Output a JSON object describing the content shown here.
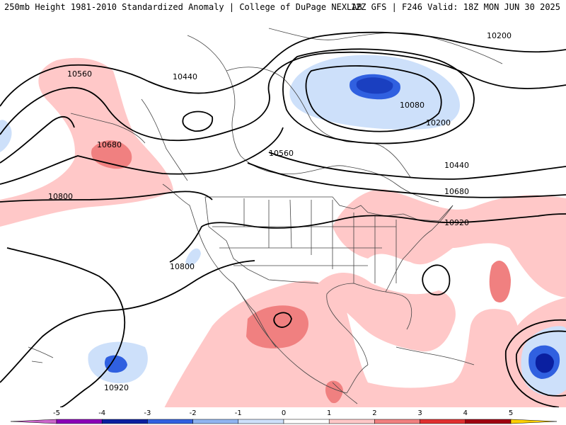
{
  "header": {
    "title": "250mb Height 1981-2010 Standardized Anomaly | College of DuPage NEXLAB",
    "run_info": "12Z GFS | F246 Valid: 18Z MON JUN 30 2025"
  },
  "contour_labels": [
    "10560",
    "10440",
    "10200",
    "10080",
    "10200",
    "10680",
    "10560",
    "10440",
    "10680",
    "10800",
    "10920",
    "10800",
    "10920"
  ],
  "legend": {
    "ticks": [
      "-5",
      "-4",
      "-3",
      "-2",
      "-1",
      "0",
      "1",
      "2",
      "3",
      "4",
      "5"
    ],
    "colors": [
      "#cc66cc",
      "#8a00b8",
      "#0a1fa0",
      "#3060e0",
      "#8fb4f0",
      "#cde0fa",
      "#ffffff",
      "#ffc8c8",
      "#f08080",
      "#e03030",
      "#a00010",
      "#e8a000",
      "#ffd000"
    ]
  }
}
